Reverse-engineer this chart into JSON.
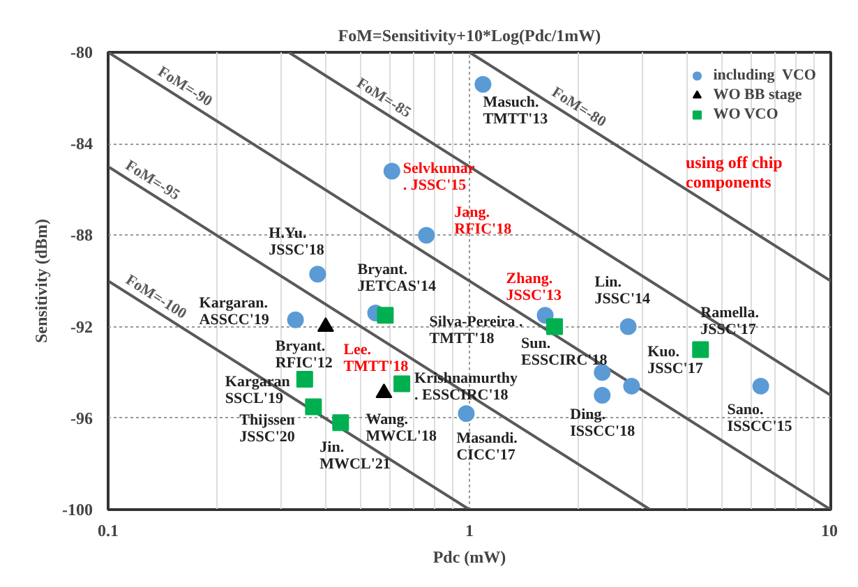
{
  "chart_data": {
    "type": "scatter",
    "title": "FoM=Sensitivity+10*Log(Pdc/1mW)",
    "xlabel": "Pdc (mW)",
    "ylabel": "Sensitivity (dBm)",
    "log": "x",
    "xlim": [
      0.1,
      10
    ],
    "xticks": [
      0.1,
      1,
      10
    ],
    "ylim": [
      -100,
      -80
    ],
    "yticks": [
      -100,
      -96,
      -92,
      -88,
      -84,
      -80
    ],
    "grid": true,
    "legend": "top right",
    "series": [
      {
        "name": "FoM=-100",
        "type": "line",
        "color": "#595959",
        "x": [
          0.1,
          1
        ],
        "values": [
          -90,
          -100
        ]
      },
      {
        "name": "FoM=-95",
        "type": "line",
        "color": "#595959",
        "x": [
          0.1,
          3.162
        ],
        "values": [
          -85,
          -100
        ]
      },
      {
        "name": "FoM=-90",
        "type": "line",
        "color": "#595959",
        "x": [
          0.1,
          10
        ],
        "values": [
          -80,
          -100
        ]
      },
      {
        "name": "FoM=-85",
        "type": "line",
        "color": "#595959",
        "x": [
          0.3162,
          10
        ],
        "values": [
          -80,
          -95
        ]
      },
      {
        "name": "FoM=-80",
        "type": "line",
        "color": "#595959",
        "x": [
          1,
          10
        ],
        "values": [
          -80,
          -90
        ]
      },
      {
        "name": "including  VCO",
        "marker": "circle",
        "color": "#5b9bd5",
        "x": [
          1.09,
          0.61,
          0.76,
          0.38,
          0.55,
          0.33,
          0.98,
          1.62,
          2.75,
          2.33,
          2.33,
          2.81,
          6.4
        ],
        "values": [
          -81.4,
          -85.2,
          -88.0,
          -89.7,
          -91.4,
          -91.7,
          -95.8,
          -91.5,
          -92.0,
          -94.0,
          -95.0,
          -94.6,
          -94.6
        ]
      },
      {
        "name": "WO BB stage",
        "marker": "triangle",
        "color": "#000000",
        "x": [
          0.4,
          0.58
        ],
        "values": [
          -92.0,
          -94.9
        ]
      },
      {
        "name": "WO VCO",
        "marker": "square",
        "color": "#00b050",
        "x": [
          0.585,
          0.35,
          0.37,
          0.44,
          0.65,
          1.72,
          4.36
        ],
        "values": [
          -91.5,
          -94.3,
          -95.5,
          -96.2,
          -94.5,
          -92.0,
          -93.0
        ]
      }
    ],
    "annotations": [
      {
        "text": "Masuch.\nTMTT'13",
        "x": 1.09,
        "y": -81.4
      },
      {
        "text": "Selvkumar\n. JSSC'15",
        "x": 0.61,
        "y": -85.2
      },
      {
        "text": "Jang.\nRFIC'18",
        "x": 0.76,
        "y": -88.0
      },
      {
        "text": "H.Yu.\nJSSC'18",
        "x": 0.38,
        "y": -89.7
      },
      {
        "text": "Bryant.\nJETCAS'14",
        "x": 0.55,
        "y": -91.4
      },
      {
        "text": "Kargaran.\nASSCC'19",
        "x": 0.33,
        "y": -91.7
      },
      {
        "text": "Bryant.\nRFIC'12",
        "x": 0.4,
        "y": -92.0
      },
      {
        "text": "Lee.\nTMTT'18",
        "x": 0.585,
        "y": -91.5
      },
      {
        "text": "Kargaran\nSSCL'19",
        "x": 0.35,
        "y": -94.3
      },
      {
        "text": "Thijssen\nJSSC'20",
        "x": 0.37,
        "y": -95.5
      },
      {
        "text": "Jin.\nMWCL'21",
        "x": 0.44,
        "y": -96.2
      },
      {
        "text": "Wang.\nMWCL'18",
        "x": 0.58,
        "y": -94.9
      },
      {
        "text": "Krishnamurthy\n. ESSCIRC'18",
        "x": 0.65,
        "y": -94.5
      },
      {
        "text": "Masandi.\nCICC'17",
        "x": 0.98,
        "y": -95.8
      },
      {
        "text": "Silva-Pereira .\nTMTT'18",
        "x": 1.62,
        "y": -91.5
      },
      {
        "text": "Zhang.\nJSSC'13",
        "x": 1.62,
        "y": -91.5
      },
      {
        "text": "Lin.\nJSSC'14",
        "x": 2.75,
        "y": -92.0
      },
      {
        "text": "Sun.\nESSCIRC'18",
        "x": 1.72,
        "y": -92.0
      },
      {
        "text": "Ramella.\nJSSC'17",
        "x": 4.36,
        "y": -93.0
      },
      {
        "text": "Kuo.\nJSSC'17",
        "x": 4.36,
        "y": -93.0
      },
      {
        "text": "Ding.\nISSCC'18",
        "x": 2.33,
        "y": -95.0
      },
      {
        "text": "Sano.\nISSCC'15",
        "x": 6.4,
        "y": -94.6
      },
      "using off chip\ncomponents"
    ]
  }
}
